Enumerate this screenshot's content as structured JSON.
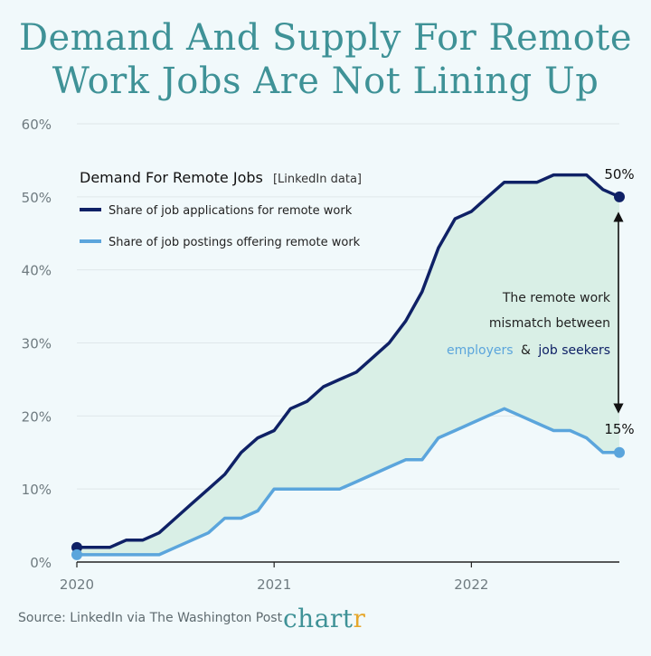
{
  "title": {
    "line1": "Demand And Supply For Remote",
    "line2": "Work Jobs Are Not Lining Up"
  },
  "legend": {
    "title": "Demand For Remote Jobs",
    "subtitle": "[LinkedIn data]",
    "items": [
      "Share of job applications for remote work",
      "Share of job postings offering remote work"
    ]
  },
  "annotation": {
    "line1": "The remote work",
    "line2": "mismatch between",
    "employers": "employers",
    "amp": "&",
    "seekers": "job seekers"
  },
  "end_labels": {
    "applications": "50%",
    "postings": "15%"
  },
  "source": "Source: LinkedIn via The Washington Post",
  "brand": {
    "main": "chart",
    "accent": "r"
  },
  "colors": {
    "applications": "#0f2166",
    "postings": "#5ba5dc",
    "fill": "#d9efe6",
    "title": "#3f9297",
    "axis_text": "#6f7b80",
    "grid": "#dfe7ea"
  },
  "chart_data": {
    "type": "line",
    "x": [
      2020.0,
      2020.167,
      2020.25,
      2020.333,
      2020.417,
      2020.5,
      2020.583,
      2020.667,
      2020.75,
      2020.833,
      2020.917,
      2021.0,
      2021.083,
      2021.167,
      2021.25,
      2021.333,
      2021.417,
      2021.5,
      2021.583,
      2021.667,
      2021.75,
      2021.833,
      2021.917,
      2022.0,
      2022.083,
      2022.167,
      2022.25,
      2022.333,
      2022.417,
      2022.5,
      2022.583,
      2022.667,
      2022.75
    ],
    "series": [
      {
        "name": "Share of job applications for remote work",
        "values": [
          2,
          2,
          3,
          3,
          4,
          6,
          8,
          10,
          12,
          15,
          17,
          18,
          21,
          22,
          24,
          25,
          26,
          28,
          30,
          33,
          37,
          43,
          47,
          48,
          50,
          52,
          52,
          52,
          53,
          53,
          53,
          51,
          50
        ]
      },
      {
        "name": "Share of job postings offering remote work",
        "values": [
          1,
          1,
          1,
          1,
          1,
          2,
          3,
          4,
          6,
          6,
          7,
          10,
          10,
          10,
          10,
          10,
          11,
          12,
          13,
          14,
          14,
          17,
          18,
          19,
          20,
          21,
          20,
          19,
          18,
          18,
          17,
          15,
          15
        ]
      }
    ],
    "x_ticks": [
      2020,
      2021,
      2022
    ],
    "x_tick_labels": [
      "2020",
      "2021",
      "2022"
    ],
    "y_ticks": [
      0,
      10,
      20,
      30,
      40,
      50,
      60
    ],
    "y_tick_labels": [
      "0%",
      "10%",
      "20%",
      "30%",
      "40%",
      "50%",
      "60%"
    ],
    "ylim": [
      0,
      60
    ],
    "xlim": [
      2020,
      2022.75
    ],
    "grid": true,
    "legend_position": "top-left"
  }
}
